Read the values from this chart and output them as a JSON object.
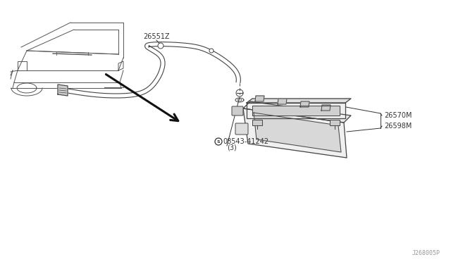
{
  "bg_color": "#ffffff",
  "line_color": "#444444",
  "text_color": "#333333",
  "fig_width": 6.4,
  "fig_height": 3.72,
  "dpi": 100,
  "watermark": "J268005P",
  "labels": {
    "screw": "08543-41242",
    "screw_sub": "(3)",
    "upper_lamp": "26598M",
    "assembly": "26570M",
    "harness": "26551Z"
  }
}
